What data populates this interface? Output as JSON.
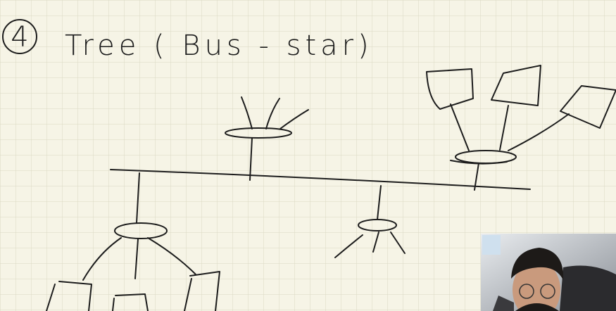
{
  "heading": {
    "number": "4",
    "text": "Tree ( Bus - star)"
  }
}
